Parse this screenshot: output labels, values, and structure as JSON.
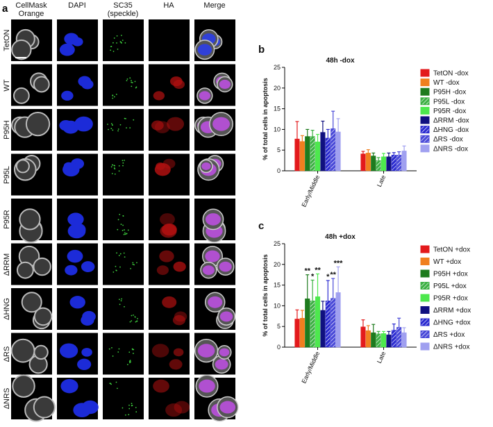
{
  "panel_a": {
    "label": "a",
    "columns": [
      "CellMask Orange",
      "DAPI",
      "SC35 (speckle)",
      "HA",
      "Merge"
    ],
    "rows": [
      "TetON",
      "WT",
      "P95H",
      "P95L",
      "P95R",
      "ΔRRM",
      "ΔHNG",
      "ΔRS",
      "ΔNRS"
    ]
  },
  "chart_data": [
    {
      "type": "bar",
      "panel_label": "b",
      "title": "48h -dox",
      "y_label": "% of total cells in apoptosis",
      "categories": [
        "Early/Middle",
        "Late"
      ],
      "ylim": [
        0,
        25
      ],
      "yticks": [
        0,
        5,
        10,
        15,
        20,
        25
      ],
      "legend": "right",
      "series": [
        {
          "name": "TetON -dox",
          "color": "#e31a1c",
          "values": [
            7.7,
            4.1
          ],
          "errors": [
            4.2,
            0.6
          ]
        },
        {
          "name": "WT -dox",
          "color": "#f07f1f",
          "values": [
            7.1,
            4.3
          ],
          "errors": [
            1.4,
            0.8
          ]
        },
        {
          "name": "P95H -dox",
          "color": "#1e7b1e",
          "values": [
            8.3,
            3.6
          ],
          "errors": [
            1.7,
            0.7
          ]
        },
        {
          "name": "P95L -dox",
          "color": "#3cb043",
          "hatch": true,
          "values": [
            8.3,
            2.5
          ],
          "errors": [
            1.5,
            0.7
          ]
        },
        {
          "name": "P95R -dox",
          "color": "#4de84d",
          "values": [
            7.0,
            3.4
          ],
          "errors": [
            1.8,
            0.8
          ]
        },
        {
          "name": "ΔRRM -dox",
          "color": "#101080",
          "values": [
            9.3,
            3.4
          ],
          "errors": [
            2.7,
            0.9
          ]
        },
        {
          "name": "ΔHNG -dox",
          "color": "#2a2ad0",
          "hatch": true,
          "values": [
            7.9,
            3.8
          ],
          "errors": [
            2.1,
            0.6
          ]
        },
        {
          "name": "ΔRS -dox",
          "color": "#4848d8",
          "hatch": true,
          "values": [
            10.2,
            3.8
          ],
          "errors": [
            4.2,
            0.8
          ]
        },
        {
          "name": "ΔNRS -dox",
          "color": "#a0a0f0",
          "values": [
            9.4,
            4.8
          ],
          "errors": [
            3.2,
            1.2
          ]
        }
      ]
    },
    {
      "type": "bar",
      "panel_label": "c",
      "title": "48h +dox",
      "y_label": "% of total cells in apoptosis",
      "categories": [
        "Early/Middle",
        "Late"
      ],
      "ylim": [
        0,
        25
      ],
      "yticks": [
        0,
        5,
        10,
        15,
        20,
        25
      ],
      "legend": "right",
      "series": [
        {
          "name": "TetON +dox",
          "color": "#e31a1c",
          "values": [
            6.8,
            4.9
          ],
          "errors": [
            2.2,
            1.7
          ]
        },
        {
          "name": "WT +dox",
          "color": "#f07f1f",
          "values": [
            7.0,
            4.0
          ],
          "errors": [
            1.9,
            1.2
          ]
        },
        {
          "name": "P95H +dox",
          "color": "#1e7b1e",
          "values": [
            11.7,
            3.5
          ],
          "errors": [
            5.8,
            2.0
          ],
          "annotations": [
            "**",
            null
          ]
        },
        {
          "name": "P95L +dox",
          "color": "#3cb043",
          "hatch": true,
          "values": [
            11.2,
            3.2
          ],
          "errors": [
            5.0,
            0.6
          ],
          "annotations": [
            "*",
            null
          ]
        },
        {
          "name": "P95R +dox",
          "color": "#4de84d",
          "values": [
            12.2,
            3.3
          ],
          "errors": [
            5.5,
            0.5
          ],
          "annotations": [
            "**",
            null
          ]
        },
        {
          "name": "ΔRRM +dox",
          "color": "#101080",
          "values": [
            8.9,
            3.0
          ],
          "errors": [
            2.2,
            0.8
          ]
        },
        {
          "name": "ΔHNG +dox",
          "color": "#2a2ad0",
          "hatch": true,
          "values": [
            11.2,
            4.1
          ],
          "errors": [
            4.9,
            1.5
          ],
          "annotations": [
            "*",
            null
          ]
        },
        {
          "name": "ΔRS +dox",
          "color": "#4848d8",
          "hatch": true,
          "values": [
            11.8,
            4.8
          ],
          "errors": [
            4.8,
            2.2
          ],
          "annotations": [
            "**",
            null
          ]
        },
        {
          "name": "ΔNRS +dox",
          "color": "#a0a0f0",
          "values": [
            13.2,
            3.5
          ],
          "errors": [
            6.2,
            1.2
          ],
          "annotations": [
            "***",
            null
          ]
        }
      ]
    }
  ]
}
